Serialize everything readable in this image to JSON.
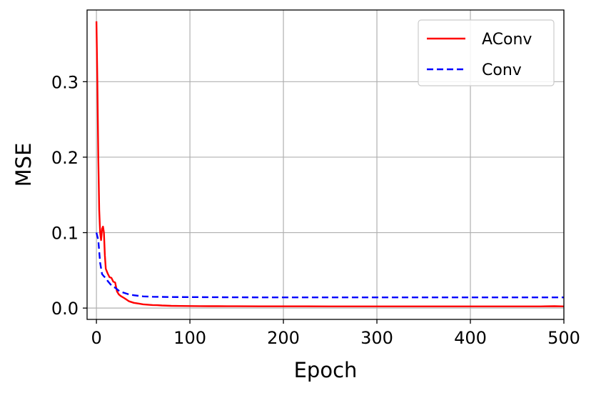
{
  "chart_data": {
    "type": "line",
    "xlabel": "Epoch",
    "ylabel": "MSE",
    "xlim": [
      -10,
      500
    ],
    "ylim": [
      -0.015,
      0.395
    ],
    "xticks": [
      0,
      100,
      200,
      300,
      400,
      500
    ],
    "yticks": [
      0.0,
      0.1,
      0.2,
      0.3
    ],
    "xtick_labels": [
      "0",
      "100",
      "200",
      "300",
      "400",
      "500"
    ],
    "ytick_labels": [
      "0.0",
      "0.1",
      "0.2",
      "0.3"
    ],
    "grid": true,
    "legend_position": "top-right",
    "series": [
      {
        "name": "AConv",
        "color": "#ff0000",
        "style": "solid",
        "x": [
          0,
          1,
          2,
          3,
          4,
          5,
          6,
          7,
          8,
          9,
          10,
          12,
          14,
          16,
          18,
          20,
          22,
          24,
          26,
          30,
          35,
          40,
          45,
          50,
          55,
          60,
          65,
          70,
          80,
          90,
          100,
          110,
          120,
          130,
          140,
          150,
          175,
          200,
          225,
          250,
          275,
          300,
          325,
          350,
          375,
          400,
          425,
          450,
          475,
          490,
          500
        ],
        "y": [
          0.38,
          0.3,
          0.2,
          0.13,
          0.1,
          0.09,
          0.105,
          0.108,
          0.1,
          0.07,
          0.052,
          0.046,
          0.041,
          0.04,
          0.035,
          0.034,
          0.022,
          0.018,
          0.016,
          0.013,
          0.009,
          0.007,
          0.006,
          0.005,
          0.0045,
          0.004,
          0.0038,
          0.0035,
          0.003,
          0.0028,
          0.0027,
          0.0026,
          0.0025,
          0.0025,
          0.0024,
          0.0024,
          0.0023,
          0.0023,
          0.0023,
          0.0022,
          0.0022,
          0.0022,
          0.0022,
          0.0022,
          0.0022,
          0.0022,
          0.0022,
          0.0022,
          0.0022,
          0.0025,
          0.0022
        ]
      },
      {
        "name": "Conv",
        "color": "#0000ff",
        "style": "dashed",
        "x": [
          0,
          2,
          4,
          6,
          8,
          10,
          12,
          14,
          16,
          18,
          20,
          25,
          30,
          35,
          40,
          50,
          60,
          70,
          80,
          100,
          150,
          200,
          300,
          400,
          500
        ],
        "y": [
          0.1,
          0.09,
          0.06,
          0.045,
          0.042,
          0.04,
          0.036,
          0.033,
          0.03,
          0.028,
          0.027,
          0.022,
          0.02,
          0.018,
          0.017,
          0.0155,
          0.015,
          0.0148,
          0.0146,
          0.0145,
          0.0143,
          0.0142,
          0.0142,
          0.0142,
          0.0142
        ]
      }
    ]
  }
}
